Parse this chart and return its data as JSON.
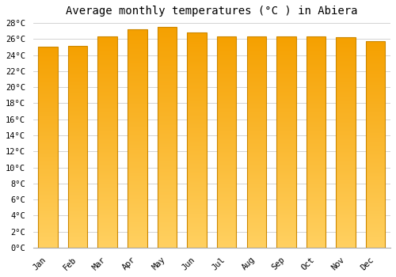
{
  "title": "Average monthly temperatures (°C ) in Abiera",
  "months": [
    "Jan",
    "Feb",
    "Mar",
    "Apr",
    "May",
    "Jun",
    "Jul",
    "Aug",
    "Sep",
    "Oct",
    "Nov",
    "Dec"
  ],
  "values": [
    25.0,
    25.1,
    26.3,
    27.2,
    27.5,
    26.8,
    26.3,
    26.3,
    26.3,
    26.3,
    26.2,
    25.7
  ],
  "bar_color_top": "#F5A000",
  "bar_color_bottom": "#FFD060",
  "ylim": [
    0,
    28
  ],
  "ytick_step": 2,
  "background_color": "#FFFFFF",
  "plot_bg_color": "#FFFFFF",
  "grid_color": "#CCCCCC",
  "title_fontsize": 10,
  "tick_fontsize": 7.5,
  "bar_edge_color": "#CC8800",
  "bar_width": 0.65
}
